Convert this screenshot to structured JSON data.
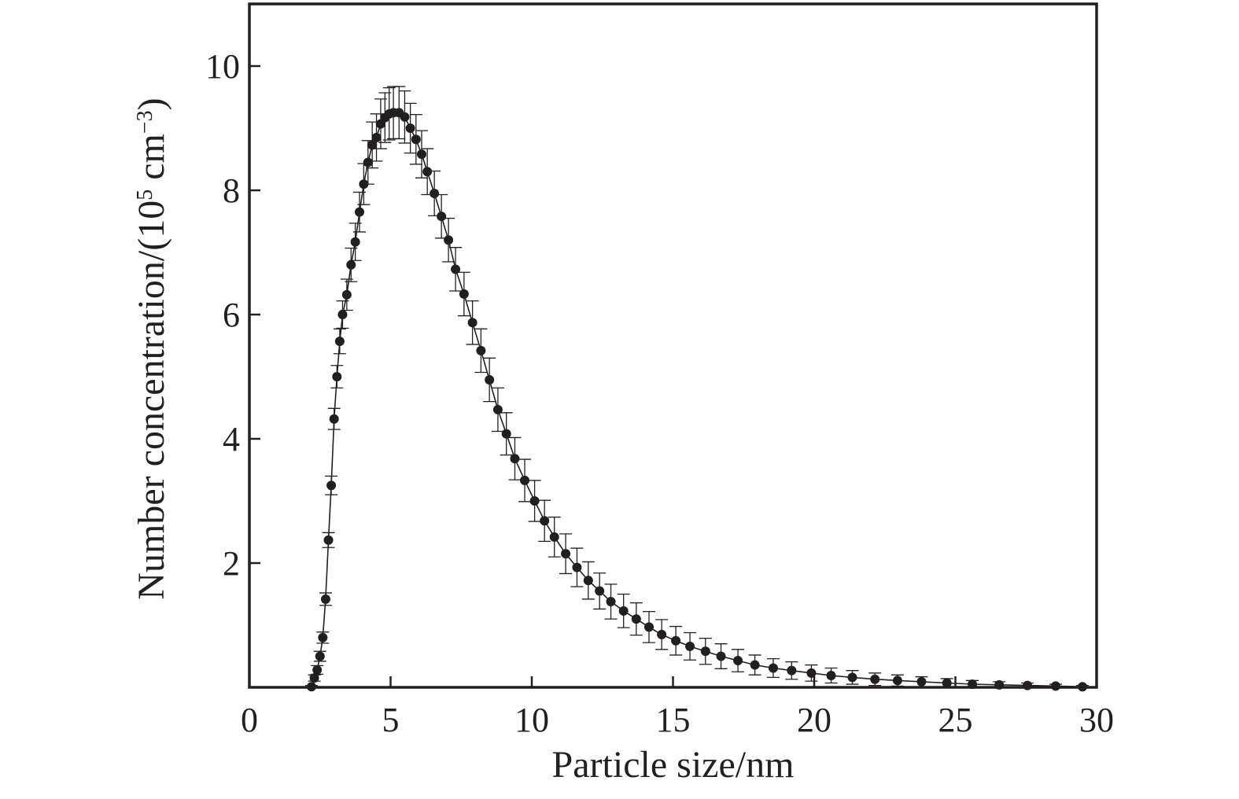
{
  "chart_data": {
    "type": "scatter",
    "title": "",
    "xlabel": "Particle size/nm",
    "ylabel": {
      "main": "Number concentration/(10",
      "sup1": "5",
      "mid": " cm",
      "sup2": "−3",
      "end": ")"
    },
    "xlim": [
      0,
      30
    ],
    "ylim": [
      0,
      11
    ],
    "x_ticks": [
      0,
      5,
      10,
      15,
      20,
      25,
      30
    ],
    "y_ticks": [
      2,
      4,
      6,
      8,
      10
    ],
    "grid": false,
    "legend": "none",
    "colors": {
      "marker": "#231f20",
      "line": "#231f20"
    },
    "series": [
      {
        "x": [
          2.2,
          2.3,
          2.4,
          2.5,
          2.6,
          2.7,
          2.8,
          2.9,
          3.0,
          3.1,
          3.2,
          3.3,
          3.45,
          3.6,
          3.75,
          3.9,
          4.05,
          4.2,
          4.35,
          4.5,
          4.65,
          4.8,
          4.95,
          5.1,
          5.3,
          5.5,
          5.7,
          5.9,
          6.1,
          6.3,
          6.55,
          6.8,
          7.05,
          7.3,
          7.6,
          7.9,
          8.2,
          8.5,
          8.8,
          9.1,
          9.4,
          9.75,
          10.1,
          10.45,
          10.8,
          11.2,
          11.6,
          12.0,
          12.4,
          12.8,
          13.25,
          13.7,
          14.15,
          14.6,
          15.1,
          15.6,
          16.15,
          16.7,
          17.3,
          17.9,
          18.55,
          19.2,
          19.9,
          20.6,
          21.35,
          22.15,
          22.95,
          23.8,
          24.7,
          25.6,
          26.55,
          27.55,
          28.55,
          29.5
        ],
        "y": [
          0.01,
          0.15,
          0.28,
          0.5,
          0.8,
          1.42,
          2.37,
          3.25,
          4.32,
          5.0,
          5.57,
          6.0,
          6.32,
          6.8,
          7.17,
          7.65,
          8.1,
          8.45,
          8.73,
          8.85,
          9.07,
          9.17,
          9.23,
          9.25,
          9.25,
          9.18,
          9.0,
          8.82,
          8.58,
          8.3,
          7.95,
          7.58,
          7.2,
          6.73,
          6.33,
          5.87,
          5.42,
          4.95,
          4.47,
          4.08,
          3.68,
          3.33,
          3.0,
          2.68,
          2.42,
          2.15,
          1.93,
          1.72,
          1.55,
          1.38,
          1.23,
          1.1,
          0.97,
          0.85,
          0.75,
          0.66,
          0.58,
          0.5,
          0.43,
          0.36,
          0.31,
          0.27,
          0.23,
          0.19,
          0.16,
          0.13,
          0.11,
          0.09,
          0.07,
          0.05,
          0.04,
          0.03,
          0.02,
          0.01
        ],
        "error": [
          0.02,
          0.05,
          0.07,
          0.08,
          0.09,
          0.1,
          0.12,
          0.15,
          0.17,
          0.18,
          0.2,
          0.22,
          0.25,
          0.27,
          0.3,
          0.32,
          0.33,
          0.35,
          0.37,
          0.38,
          0.4,
          0.4,
          0.42,
          0.42,
          0.42,
          0.42,
          0.4,
          0.4,
          0.38,
          0.37,
          0.36,
          0.35,
          0.35,
          0.35,
          0.35,
          0.35,
          0.35,
          0.35,
          0.35,
          0.34,
          0.34,
          0.34,
          0.33,
          0.33,
          0.32,
          0.32,
          0.31,
          0.3,
          0.29,
          0.28,
          0.27,
          0.26,
          0.25,
          0.24,
          0.23,
          0.22,
          0.21,
          0.2,
          0.18,
          0.16,
          0.15,
          0.14,
          0.13,
          0.12,
          0.11,
          0.1,
          0.09,
          0.08,
          0.07,
          0.06,
          0.05,
          0.04,
          0.03,
          0.02
        ]
      }
    ]
  }
}
